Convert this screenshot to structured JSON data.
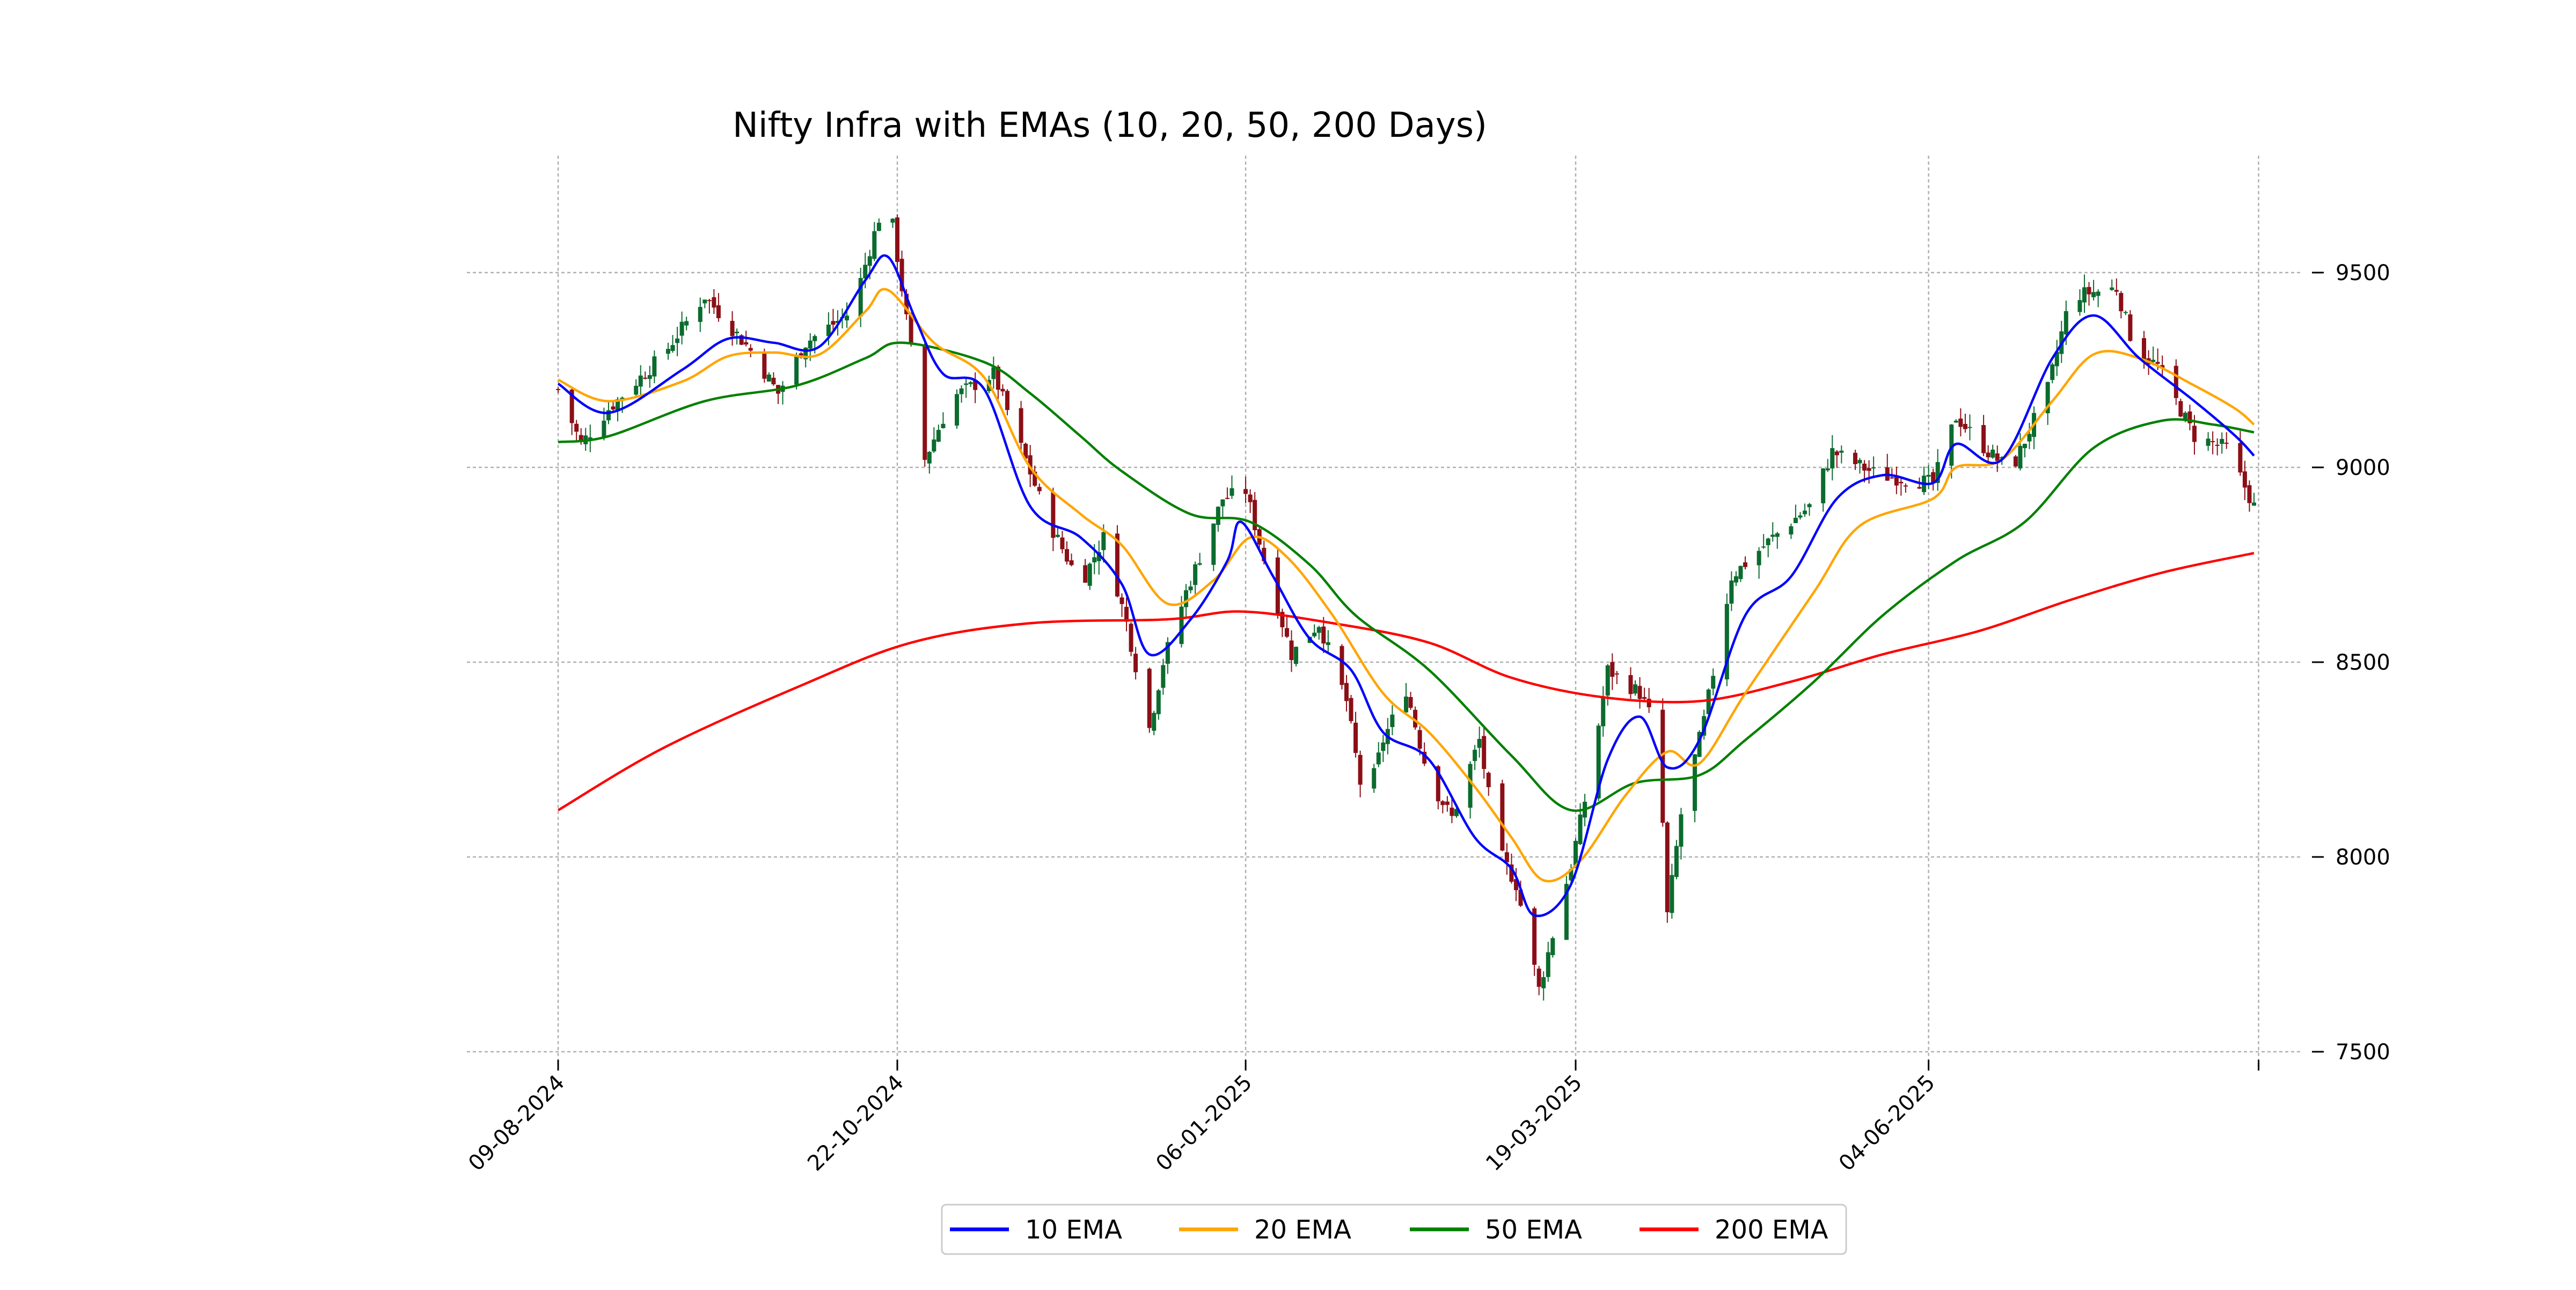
{
  "chart_data": {
    "type": "line",
    "title": "Nifty Infra with EMAs (10, 20, 50, 200 Days)",
    "xlabel": "",
    "ylabel": "",
    "x_range": [
      "2024-08-09",
      "2025-08-14"
    ],
    "ylim": [
      7500,
      9800
    ],
    "y_ticks": [
      7500,
      8000,
      8500,
      9000,
      9500
    ],
    "x_ticks": [
      {
        "label": "09-08-2024",
        "date": "2024-08-09"
      },
      {
        "label": "22-10-2024",
        "date": "2024-10-22"
      },
      {
        "label": "06-01-2025",
        "date": "2025-01-06"
      },
      {
        "label": "19-03-2025",
        "date": "2025-03-19"
      },
      {
        "label": "04-06-2025",
        "date": "2025-06-04"
      },
      {
        "label": "",
        "date": "2025-08-15"
      }
    ],
    "grid": true,
    "y_axis_side": "right",
    "legend_position": "bottom-center",
    "price_colors": {
      "up": "#0b6b2e",
      "down": "#8b0f16"
    },
    "series": [
      {
        "name": "10 EMA",
        "color": "#0000ff",
        "points": [
          [
            "2024-08-09",
            9215
          ],
          [
            "2024-08-20",
            9140
          ],
          [
            "2024-09-05",
            9250
          ],
          [
            "2024-09-15",
            9330
          ],
          [
            "2024-09-25",
            9320
          ],
          [
            "2024-10-05",
            9310
          ],
          [
            "2024-10-15",
            9480
          ],
          [
            "2024-10-20",
            9540
          ],
          [
            "2024-10-26",
            9380
          ],
          [
            "2024-11-01",
            9240
          ],
          [
            "2024-11-10",
            9200
          ],
          [
            "2024-11-20",
            8900
          ],
          [
            "2024-12-01",
            8820
          ],
          [
            "2024-12-10",
            8700
          ],
          [
            "2024-12-16",
            8520
          ],
          [
            "2024-12-25",
            8610
          ],
          [
            "2025-01-02",
            8760
          ],
          [
            "2025-01-05",
            8860
          ],
          [
            "2025-01-12",
            8720
          ],
          [
            "2025-01-20",
            8560
          ],
          [
            "2025-01-29",
            8480
          ],
          [
            "2025-02-05",
            8320
          ],
          [
            "2025-02-15",
            8250
          ],
          [
            "2025-02-25",
            8050
          ],
          [
            "2025-03-05",
            7970
          ],
          [
            "2025-03-10",
            7850
          ],
          [
            "2025-03-18",
            7930
          ],
          [
            "2025-03-26",
            8250
          ],
          [
            "2025-04-02",
            8360
          ],
          [
            "2025-04-08",
            8230
          ],
          [
            "2025-04-15",
            8300
          ],
          [
            "2025-04-25",
            8620
          ],
          [
            "2025-05-05",
            8720
          ],
          [
            "2025-05-15",
            8920
          ],
          [
            "2025-05-25",
            8980
          ],
          [
            "2025-06-05",
            8960
          ],
          [
            "2025-06-10",
            9060
          ],
          [
            "2025-06-20",
            9020
          ],
          [
            "2025-07-01",
            9280
          ],
          [
            "2025-07-10",
            9390
          ],
          [
            "2025-07-20",
            9280
          ],
          [
            "2025-08-01",
            9170
          ],
          [
            "2025-08-10",
            9080
          ],
          [
            "2025-08-14",
            9030
          ]
        ]
      },
      {
        "name": "20 EMA",
        "color": "#ffa500",
        "points": [
          [
            "2024-08-09",
            9225
          ],
          [
            "2024-08-20",
            9170
          ],
          [
            "2024-09-05",
            9220
          ],
          [
            "2024-09-15",
            9285
          ],
          [
            "2024-09-25",
            9295
          ],
          [
            "2024-10-05",
            9290
          ],
          [
            "2024-10-15",
            9400
          ],
          [
            "2024-10-20",
            9455
          ],
          [
            "2024-10-30",
            9320
          ],
          [
            "2024-11-10",
            9230
          ],
          [
            "2024-11-20",
            9000
          ],
          [
            "2024-12-01",
            8880
          ],
          [
            "2024-12-10",
            8800
          ],
          [
            "2024-12-20",
            8650
          ],
          [
            "2024-12-30",
            8710
          ],
          [
            "2025-01-07",
            8820
          ],
          [
            "2025-01-15",
            8770
          ],
          [
            "2025-01-25",
            8620
          ],
          [
            "2025-02-05",
            8420
          ],
          [
            "2025-02-15",
            8320
          ],
          [
            "2025-02-25",
            8180
          ],
          [
            "2025-03-05",
            8050
          ],
          [
            "2025-03-12",
            7940
          ],
          [
            "2025-03-20",
            7990
          ],
          [
            "2025-03-30",
            8160
          ],
          [
            "2025-04-08",
            8270
          ],
          [
            "2025-04-15",
            8240
          ],
          [
            "2025-04-25",
            8420
          ],
          [
            "2025-05-10",
            8680
          ],
          [
            "2025-05-20",
            8850
          ],
          [
            "2025-06-05",
            8920
          ],
          [
            "2025-06-10",
            9000
          ],
          [
            "2025-06-20",
            9020
          ],
          [
            "2025-07-01",
            9170
          ],
          [
            "2025-07-10",
            9290
          ],
          [
            "2025-07-20",
            9280
          ],
          [
            "2025-08-01",
            9210
          ],
          [
            "2025-08-10",
            9150
          ],
          [
            "2025-08-14",
            9110
          ]
        ]
      },
      {
        "name": "50 EMA",
        "color": "#008000",
        "points": [
          [
            "2024-08-09",
            9065
          ],
          [
            "2024-08-20",
            9080
          ],
          [
            "2024-09-10",
            9170
          ],
          [
            "2024-09-30",
            9210
          ],
          [
            "2024-10-15",
            9280
          ],
          [
            "2024-10-23",
            9320
          ],
          [
            "2024-11-10",
            9270
          ],
          [
            "2024-11-20",
            9190
          ],
          [
            "2024-12-01",
            9080
          ],
          [
            "2024-12-10",
            8990
          ],
          [
            "2024-12-25",
            8880
          ],
          [
            "2025-01-07",
            8860
          ],
          [
            "2025-01-20",
            8750
          ],
          [
            "2025-01-30",
            8620
          ],
          [
            "2025-02-15",
            8480
          ],
          [
            "2025-03-05",
            8260
          ],
          [
            "2025-03-18",
            8120
          ],
          [
            "2025-04-01",
            8190
          ],
          [
            "2025-04-15",
            8210
          ],
          [
            "2025-04-25",
            8300
          ],
          [
            "2025-05-10",
            8450
          ],
          [
            "2025-05-25",
            8620
          ],
          [
            "2025-06-10",
            8760
          ],
          [
            "2025-06-25",
            8860
          ],
          [
            "2025-07-10",
            9050
          ],
          [
            "2025-07-25",
            9120
          ],
          [
            "2025-08-05",
            9110
          ],
          [
            "2025-08-14",
            9090
          ]
        ]
      },
      {
        "name": "200 EMA",
        "color": "#ff0000",
        "points": [
          [
            "2024-08-09",
            8120
          ],
          [
            "2024-09-01",
            8280
          ],
          [
            "2024-10-01",
            8440
          ],
          [
            "2024-10-25",
            8550
          ],
          [
            "2024-11-20",
            8600
          ],
          [
            "2024-12-20",
            8610
          ],
          [
            "2025-01-05",
            8630
          ],
          [
            "2025-01-25",
            8600
          ],
          [
            "2025-02-15",
            8550
          ],
          [
            "2025-03-05",
            8460
          ],
          [
            "2025-03-25",
            8410
          ],
          [
            "2025-04-15",
            8400
          ],
          [
            "2025-05-05",
            8450
          ],
          [
            "2025-05-25",
            8520
          ],
          [
            "2025-06-15",
            8580
          ],
          [
            "2025-07-05",
            8660
          ],
          [
            "2025-07-25",
            8730
          ],
          [
            "2025-08-14",
            8780
          ]
        ]
      }
    ],
    "price_path": [
      [
        "2024-08-09",
        9200
      ],
      [
        "2024-08-14",
        9060
      ],
      [
        "2024-08-20",
        9150
      ],
      [
        "2024-09-01",
        9290
      ],
      [
        "2024-09-10",
        9440
      ],
      [
        "2024-09-20",
        9300
      ],
      [
        "2024-09-26",
        9190
      ],
      [
        "2024-10-02",
        9320
      ],
      [
        "2024-10-12",
        9400
      ],
      [
        "2024-10-18",
        9640
      ],
      [
        "2024-10-21",
        9620
      ],
      [
        "2024-10-25",
        9300
      ],
      [
        "2024-10-28",
        9020
      ],
      [
        "2024-11-03",
        9180
      ],
      [
        "2024-11-12",
        9240
      ],
      [
        "2024-11-18",
        9050
      ],
      [
        "2024-11-24",
        8860
      ],
      [
        "2024-12-01",
        8700
      ],
      [
        "2024-12-06",
        8820
      ],
      [
        "2024-12-11",
        8600
      ],
      [
        "2024-12-16",
        8330
      ],
      [
        "2024-12-19",
        8500
      ],
      [
        "2024-12-24",
        8680
      ],
      [
        "2025-01-01",
        8920
      ],
      [
        "2025-01-06",
        8940
      ],
      [
        "2025-01-11",
        8720
      ],
      [
        "2025-01-16",
        8520
      ],
      [
        "2025-01-22",
        8600
      ],
      [
        "2025-01-28",
        8400
      ],
      [
        "2025-02-01",
        8120
      ],
      [
        "2025-02-05",
        8300
      ],
      [
        "2025-02-10",
        8430
      ],
      [
        "2025-02-15",
        8200
      ],
      [
        "2025-02-20",
        8100
      ],
      [
        "2025-02-26",
        8300
      ],
      [
        "2025-03-02",
        8020
      ],
      [
        "2025-03-06",
        7930
      ],
      [
        "2025-03-11",
        7660
      ],
      [
        "2025-03-14",
        7800
      ],
      [
        "2025-03-18",
        7980
      ],
      [
        "2025-03-22",
        8200
      ],
      [
        "2025-03-26",
        8480
      ],
      [
        "2025-04-02",
        8420
      ],
      [
        "2025-04-06",
        8320
      ],
      [
        "2025-04-08",
        7850
      ],
      [
        "2025-04-11",
        8110
      ],
      [
        "2025-04-16",
        8350
      ],
      [
        "2025-04-22",
        8720
      ],
      [
        "2025-05-01",
        8820
      ],
      [
        "2025-05-09",
        8900
      ],
      [
        "2025-05-14",
        9040
      ],
      [
        "2025-05-24",
        8980
      ],
      [
        "2025-06-05",
        8960
      ],
      [
        "2025-06-10",
        9130
      ],
      [
        "2025-06-17",
        9040
      ],
      [
        "2025-06-22",
        8990
      ],
      [
        "2025-06-30",
        9200
      ],
      [
        "2025-07-05",
        9440
      ],
      [
        "2025-07-15",
        9460
      ],
      [
        "2025-07-19",
        9300
      ],
      [
        "2025-07-24",
        9260
      ],
      [
        "2025-08-01",
        9080
      ],
      [
        "2025-08-08",
        9050
      ],
      [
        "2025-08-14",
        8900
      ]
    ]
  }
}
